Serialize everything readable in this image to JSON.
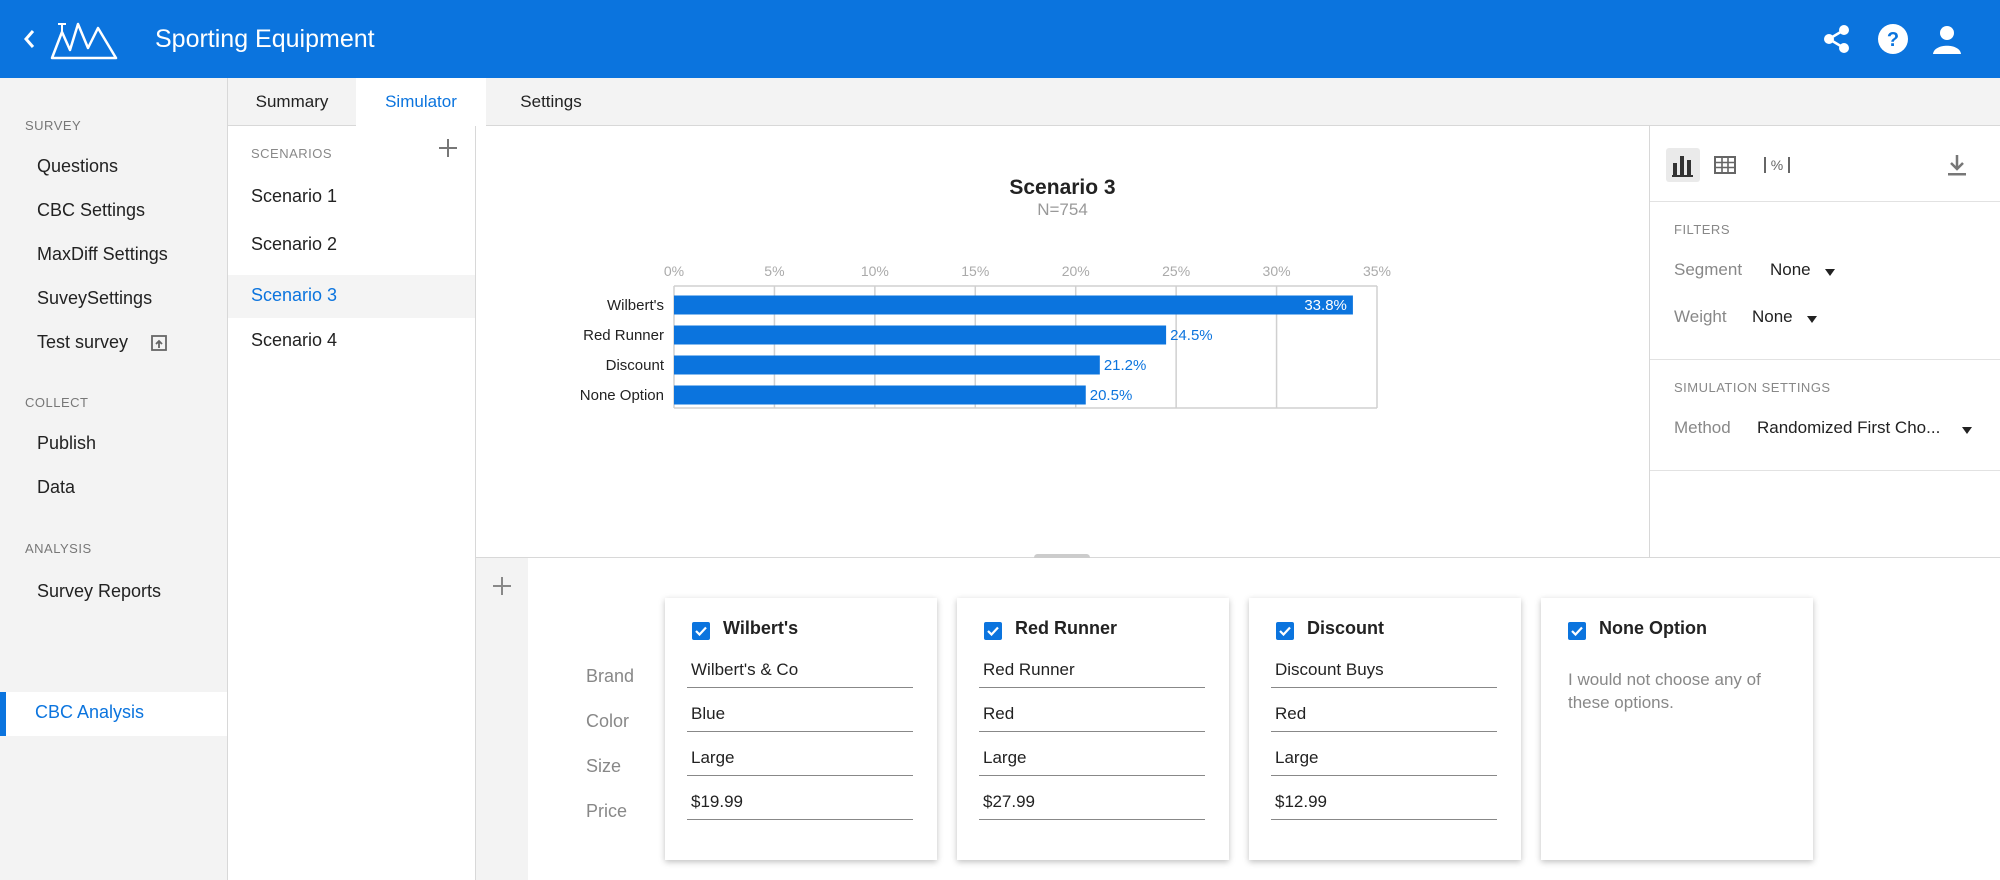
{
  "app": {
    "title": "Sporting Equipment"
  },
  "sidebar": {
    "sections": [
      {
        "label": "SURVEY",
        "items": [
          "Questions",
          "CBC Settings",
          "MaxDiff Settings",
          "SuveySettings",
          "Test survey"
        ]
      },
      {
        "label": "COLLECT",
        "items": [
          "Publish",
          "Data"
        ]
      },
      {
        "label": "ANALYSIS",
        "items": [
          "Survey Reports",
          "CBC Analysis"
        ]
      }
    ],
    "active": "CBC Analysis"
  },
  "tabs": [
    "Summary",
    "Simulator",
    "Settings"
  ],
  "active_tab": "Simulator",
  "scenarios": {
    "header": "SCENARIOS",
    "items": [
      "Scenario 1",
      "Scenario 2",
      "Scenario 3",
      "Scenario 4"
    ],
    "active": "Scenario 3"
  },
  "chart_data": {
    "type": "bar",
    "orientation": "horizontal",
    "title": "Scenario 3",
    "subtitle": "N=754",
    "categories": [
      "Wilbert's",
      "Red Runner",
      "Discount",
      "None Option"
    ],
    "values": [
      33.8,
      24.5,
      21.2,
      20.5
    ],
    "value_labels": [
      "33.8%",
      "24.5%",
      "21.2%",
      "20.5%"
    ],
    "xlim": [
      0,
      35
    ],
    "xticks": [
      "0%",
      "5%",
      "10%",
      "15%",
      "20%",
      "25%",
      "30%",
      "35%"
    ],
    "xtick_values": [
      0,
      5,
      10,
      15,
      20,
      25,
      30,
      35
    ],
    "grid": true,
    "bar_color": "#0b74de"
  },
  "right_panel": {
    "filters_label": "FILTERS",
    "segment_label": "Segment",
    "segment_value": "None",
    "weight_label": "Weight",
    "weight_value": "None",
    "sim_label": "SIMULATION SETTINGS",
    "method_label": "Method",
    "method_value": "Randomized First Cho..."
  },
  "products": {
    "attributes": [
      "Brand",
      "Color",
      "Size",
      "Price"
    ],
    "cards": [
      {
        "name": "Wilbert's",
        "fields": [
          "Wilbert's & Co",
          "Blue",
          "Large",
          "$19.99"
        ]
      },
      {
        "name": "Red Runner",
        "fields": [
          "Red Runner",
          "Red",
          "Large",
          "$27.99"
        ]
      },
      {
        "name": "Discount",
        "fields": [
          "Discount Buys",
          "Red",
          "Large",
          "$12.99"
        ]
      }
    ],
    "none_card": {
      "name": "None Option",
      "note": "I would not choose any of these options."
    }
  },
  "colors": {
    "accent": "#0b74de",
    "sidebar_bg": "#f3f3f3"
  },
  "icons": [
    "back-arrow-icon",
    "logo-icon",
    "share-icon",
    "help-icon",
    "account-icon",
    "plus-icon",
    "bar-chart-icon",
    "table-icon",
    "percent-icon",
    "download-icon",
    "checkbox-icon",
    "dropdown-caret-icon",
    "external-link-icon"
  ]
}
